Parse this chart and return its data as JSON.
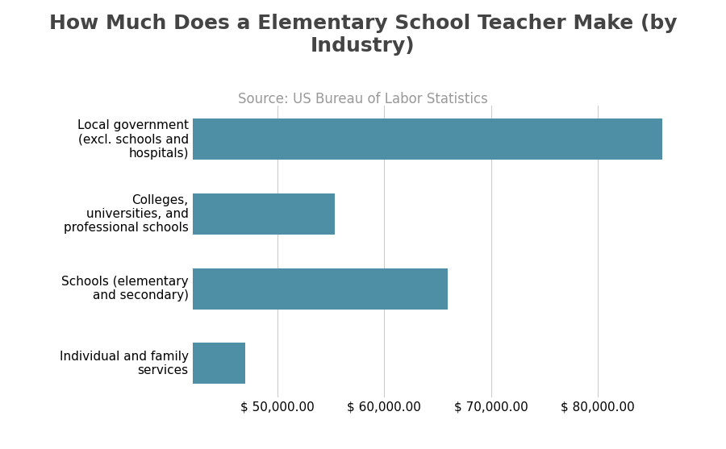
{
  "title": "How Much Does a Elementary School Teacher Make (by\nIndustry)",
  "subtitle": "Source: US Bureau of Labor Statistics",
  "categories": [
    "Individual and family\nservices",
    "Schools (elementary\nand secondary)",
    "Colleges,\nuniversities, and\nprofessional schools",
    "Local government\n(excl. schools and\nhospitals)"
  ],
  "values": [
    46990,
    65970,
    55380,
    86050
  ],
  "bar_color": "#4e8fa6",
  "background_color": "#ffffff",
  "xlim": [
    42000,
    90000
  ],
  "xticks": [
    50000,
    60000,
    70000,
    80000
  ],
  "title_fontsize": 18,
  "subtitle_fontsize": 12,
  "tick_label_fontsize": 11,
  "title_color": "#444444",
  "subtitle_color": "#999999",
  "grid_color": "#cccccc"
}
